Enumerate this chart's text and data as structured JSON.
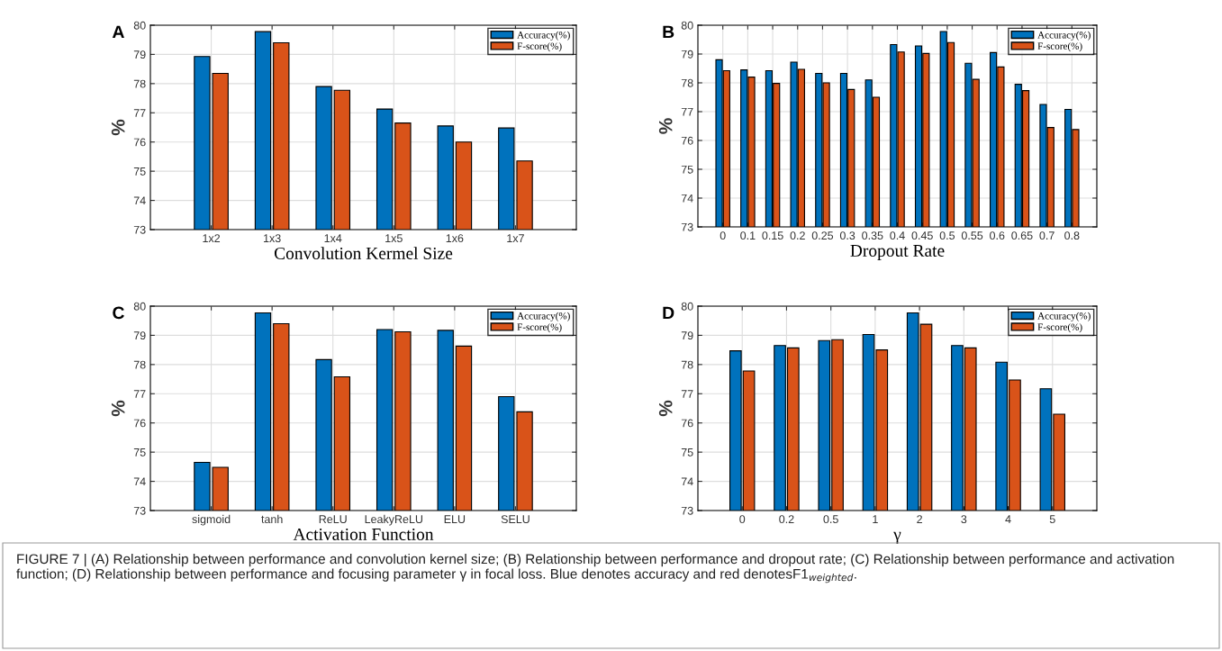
{
  "chart_data": [
    {
      "type": "bar",
      "title": "A",
      "xlabel": "Convolution Kermel Size",
      "ylabel": "%",
      "categories": [
        "1x2",
        "1x3",
        "1x4",
        "1x5",
        "1x6",
        "1x7"
      ],
      "series": [
        {
          "name": "Accuracy(%)",
          "color": "#0072bd",
          "values": [
            78.93,
            79.78,
            77.9,
            77.13,
            76.55,
            76.48
          ]
        },
        {
          "name": "F-score(%)",
          "color": "#d95319",
          "values": [
            78.35,
            79.4,
            77.77,
            76.65,
            76.0,
            75.35
          ]
        }
      ],
      "ylim": [
        73,
        80
      ],
      "yticks": [
        73,
        74,
        75,
        76,
        77,
        78,
        79,
        80
      ],
      "grid": true,
      "legend": "top right",
      "annotations": [
        "FIGURE 7 | (A) Relationship between performance and convolution kernel size; (B) Relationship between performance and dropout rate; (C) Relationship between performance and activation function; (D) Relationship between performance and focusing parameter γ in focal loss. Blue denotes accuracy and red denotesF1$_{weighted}$."
      ]
    },
    {
      "type": "bar",
      "title": "B",
      "xlabel": "Dropout Rate",
      "ylabel": "%",
      "categories": [
        "0",
        "0.1",
        "0.15",
        "0.2",
        "0.25",
        "0.3",
        "0.35",
        "0.4",
        "0.45",
        "0.5",
        "0.55",
        "0.6",
        "0.65",
        "0.7",
        "0.8"
      ],
      "series": [
        {
          "name": "Accuracy(%)",
          "color": "#0072bd",
          "values": [
            78.8,
            78.45,
            78.42,
            78.72,
            78.33,
            78.33,
            78.1,
            79.33,
            79.28,
            79.78,
            78.68,
            79.05,
            77.95,
            77.25,
            77.08
          ]
        },
        {
          "name": "F-score(%)",
          "color": "#d95319",
          "values": [
            78.42,
            78.2,
            77.98,
            78.47,
            78.0,
            77.77,
            77.5,
            79.07,
            79.02,
            79.4,
            78.12,
            78.55,
            77.73,
            76.45,
            76.38
          ]
        }
      ],
      "ylim": [
        73,
        80
      ],
      "yticks": [
        73,
        74,
        75,
        76,
        77,
        78,
        79,
        80
      ],
      "grid": true,
      "legend": "top right"
    },
    {
      "type": "bar",
      "title": "C",
      "xlabel": "Activation Function",
      "ylabel": "%",
      "categories": [
        "sigmoid",
        "tanh",
        "ReLU",
        "LeakyReLU",
        "ELU",
        "SELU"
      ],
      "series": [
        {
          "name": "Accuracy(%)",
          "color": "#0072bd",
          "values": [
            74.65,
            79.77,
            78.17,
            79.2,
            79.17,
            76.9
          ]
        },
        {
          "name": "F-score(%)",
          "color": "#d95319",
          "values": [
            74.48,
            79.4,
            77.58,
            79.12,
            78.63,
            76.38
          ]
        }
      ],
      "ylim": [
        73,
        80
      ],
      "yticks": [
        73,
        74,
        75,
        76,
        77,
        78,
        79,
        80
      ],
      "grid": true,
      "legend": "top right"
    },
    {
      "type": "bar",
      "title": "D",
      "xlabel": "γ",
      "ylabel": "%",
      "categories": [
        "0",
        "0.2",
        "0.5",
        "1",
        "2",
        "3",
        "4",
        "5"
      ],
      "series": [
        {
          "name": "Accuracy(%)",
          "color": "#0072bd",
          "values": [
            78.47,
            78.65,
            78.82,
            79.03,
            79.77,
            78.65,
            78.08,
            77.17
          ]
        },
        {
          "name": "F-score(%)",
          "color": "#d95319",
          "values": [
            77.78,
            78.57,
            78.85,
            78.5,
            79.38,
            78.57,
            77.47,
            76.3
          ]
        }
      ],
      "ylim": [
        73,
        80
      ],
      "yticks": [
        73,
        74,
        75,
        76,
        77,
        78,
        79,
        80
      ],
      "grid": true,
      "legend": "top right"
    }
  ]
}
